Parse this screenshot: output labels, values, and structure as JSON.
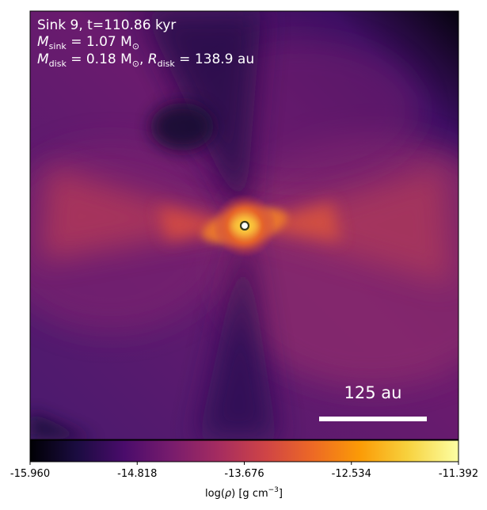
{
  "annotations": {
    "line1": "Sink 9, t=110.86 kyr",
    "line2_main": "M",
    "line2_sub": "sink",
    "line2_rest": " = 1.07 M",
    "line2_sun": "⊙",
    "line3_main1": "M",
    "line3_sub1": "disk",
    "line3_mid": " = 0.18 M",
    "line3_sun": "⊙",
    "line3_sep": ", ",
    "line3_main2": "R",
    "line3_sub2": "disk",
    "line3_rest": " = 138.9 au"
  },
  "scalebar": {
    "label": "125 au",
    "length_au": 125
  },
  "colorbar": {
    "label_pre": "log(",
    "label_rho": "ρ",
    "label_post": ") [g cm",
    "label_exp": "−3",
    "label_end": "]",
    "colormap": "inferno",
    "range": [
      -15.96,
      -11.392
    ],
    "ticks": [
      "-15.960",
      "-14.818",
      "-13.676",
      "-12.534",
      "-11.392"
    ],
    "stops": [
      "#000004",
      "#1b0c41",
      "#4a0c6b",
      "#781c6d",
      "#a52c60",
      "#cf4446",
      "#ed6925",
      "#fb9b06",
      "#f7d13d",
      "#fcffa4"
    ]
  },
  "chart_data": {
    "type": "heatmap",
    "quantity": "log(ρ) [g cm^-3]",
    "vmin": -15.96,
    "vmax": -11.392,
    "sink_id": 9,
    "time_kyr": 110.86,
    "M_sink_Msun": 1.07,
    "M_disk_Msun": 0.18,
    "R_disk_au": 138.9,
    "features": {
      "central_sink": "bright disk-plane density peak at image center",
      "dense_lobes": "orange-red band along disk plane extending left and right",
      "low_density_cones": "dark purple outflow cavities above and below"
    }
  }
}
